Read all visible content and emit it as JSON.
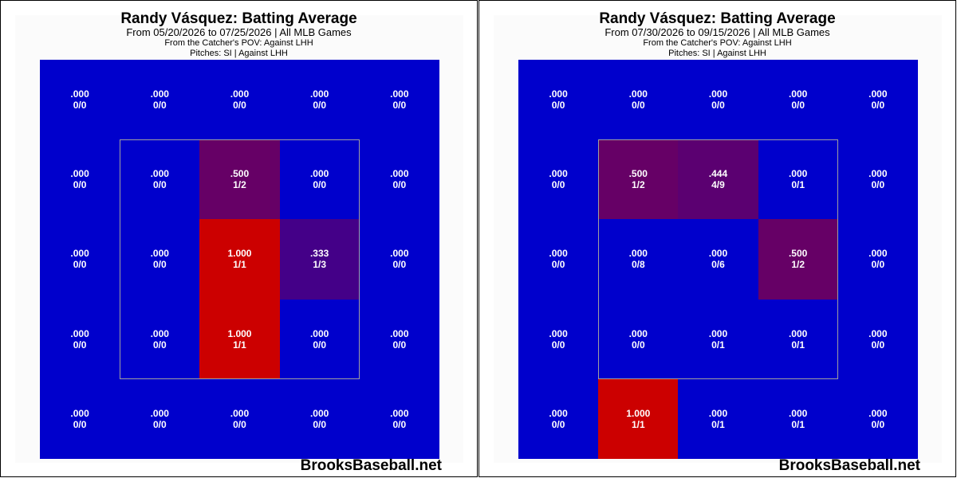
{
  "panels": [
    {
      "title": "Randy Vásquez: Batting Average",
      "subtitle": "From 05/20/2026 to 07/25/2026 | All MLB Games",
      "info1": "From the Catcher's POV:   Against LHH",
      "info2": "Pitches:  SI  |  Against LHH",
      "watermark": "BrooksBaseball.net"
    },
    {
      "title": "Randy Vásquez: Batting Average",
      "subtitle": "From 07/30/2026 to 09/15/2026 | All MLB Games",
      "info1": "From the Catcher's POV:   Against LHH",
      "info2": "Pitches:  SI  |  Against LHH",
      "watermark": "BrooksBaseball.net"
    }
  ],
  "colors": {
    "cold": "#0000cc",
    "hot": "#cc0000",
    "strike_zone_border": "#a0a0a0"
  },
  "chart_data": [
    {
      "type": "heatmap",
      "title": "Randy Vásquez: Batting Average",
      "rows": 5,
      "cols": 5,
      "cells": [
        [
          {
            "avg": ".000",
            "frac": "0/0"
          },
          {
            "avg": ".000",
            "frac": "0/0"
          },
          {
            "avg": ".000",
            "frac": "0/0"
          },
          {
            "avg": ".000",
            "frac": "0/0"
          },
          {
            "avg": ".000",
            "frac": "0/0"
          }
        ],
        [
          {
            "avg": ".000",
            "frac": "0/0"
          },
          {
            "avg": ".000",
            "frac": "0/0"
          },
          {
            "avg": ".500",
            "frac": "1/2"
          },
          {
            "avg": ".000",
            "frac": "0/0"
          },
          {
            "avg": ".000",
            "frac": "0/0"
          }
        ],
        [
          {
            "avg": ".000",
            "frac": "0/0"
          },
          {
            "avg": ".000",
            "frac": "0/0"
          },
          {
            "avg": "1.000",
            "frac": "1/1"
          },
          {
            "avg": ".333",
            "frac": "1/3"
          },
          {
            "avg": ".000",
            "frac": "0/0"
          }
        ],
        [
          {
            "avg": ".000",
            "frac": "0/0"
          },
          {
            "avg": ".000",
            "frac": "0/0"
          },
          {
            "avg": "1.000",
            "frac": "1/1"
          },
          {
            "avg": ".000",
            "frac": "0/0"
          },
          {
            "avg": ".000",
            "frac": "0/0"
          }
        ],
        [
          {
            "avg": ".000",
            "frac": "0/0"
          },
          {
            "avg": ".000",
            "frac": "0/0"
          },
          {
            "avg": ".000",
            "frac": "0/0"
          },
          {
            "avg": ".000",
            "frac": "0/0"
          },
          {
            "avg": ".000",
            "frac": "0/0"
          }
        ]
      ]
    },
    {
      "type": "heatmap",
      "title": "Randy Vásquez: Batting Average",
      "rows": 5,
      "cols": 5,
      "cells": [
        [
          {
            "avg": ".000",
            "frac": "0/0"
          },
          {
            "avg": ".000",
            "frac": "0/0"
          },
          {
            "avg": ".000",
            "frac": "0/0"
          },
          {
            "avg": ".000",
            "frac": "0/0"
          },
          {
            "avg": ".000",
            "frac": "0/0"
          }
        ],
        [
          {
            "avg": ".000",
            "frac": "0/0"
          },
          {
            "avg": ".500",
            "frac": "1/2"
          },
          {
            "avg": ".444",
            "frac": "4/9"
          },
          {
            "avg": ".000",
            "frac": "0/1"
          },
          {
            "avg": ".000",
            "frac": "0/0"
          }
        ],
        [
          {
            "avg": ".000",
            "frac": "0/0"
          },
          {
            "avg": ".000",
            "frac": "0/8"
          },
          {
            "avg": ".000",
            "frac": "0/6"
          },
          {
            "avg": ".500",
            "frac": "1/2"
          },
          {
            "avg": ".000",
            "frac": "0/0"
          }
        ],
        [
          {
            "avg": ".000",
            "frac": "0/0"
          },
          {
            "avg": ".000",
            "frac": "0/0"
          },
          {
            "avg": ".000",
            "frac": "0/1"
          },
          {
            "avg": ".000",
            "frac": "0/1"
          },
          {
            "avg": ".000",
            "frac": "0/0"
          }
        ],
        [
          {
            "avg": ".000",
            "frac": "0/0"
          },
          {
            "avg": "1.000",
            "frac": "1/1"
          },
          {
            "avg": ".000",
            "frac": "0/1"
          },
          {
            "avg": ".000",
            "frac": "0/1"
          },
          {
            "avg": ".000",
            "frac": "0/0"
          }
        ]
      ]
    }
  ]
}
